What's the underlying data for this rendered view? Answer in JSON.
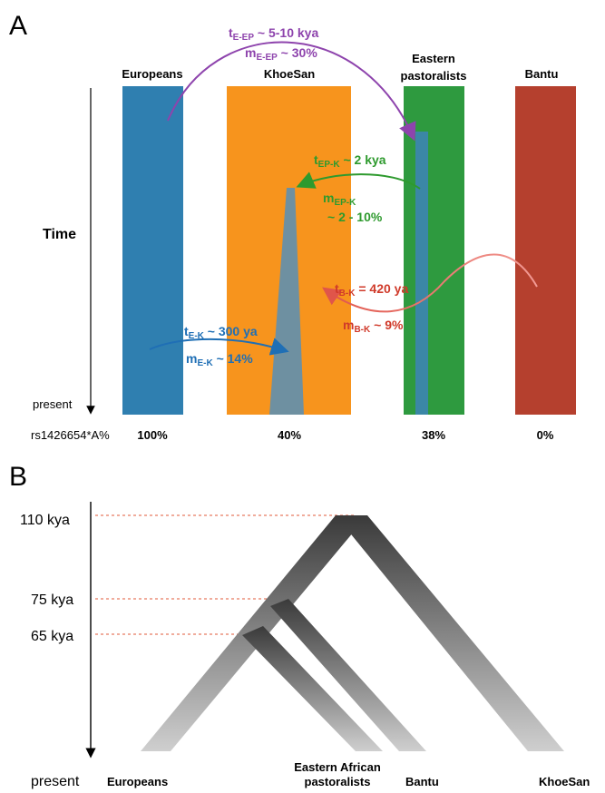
{
  "panel_a": {
    "label": "A",
    "populations": [
      "Europeans",
      "KhoeSan",
      "Eastern",
      "pastoralists",
      "Bantu"
    ],
    "time_label": "Time",
    "present_label": "present",
    "snp_label": "rs1426654*A%",
    "frequencies": [
      "100%",
      "40%",
      "38%",
      "0%"
    ],
    "colors": {
      "europeans": "#2f7fb0",
      "khoesan": "#f7941d",
      "pastoralists": "#2e9a3f",
      "bantu": "#b5402e"
    },
    "events": {
      "e_ep": {
        "t_main": "t",
        "t_sub": "E-EP",
        "t_val": " ~ 5-10 kya",
        "m_main": "m",
        "m_sub": "E-EP",
        "m_val": " ~ 30%",
        "color": "#8e44ad"
      },
      "ep_k": {
        "t_main": "t",
        "t_sub": "EP-K",
        "t_val": " ~ 2 kya",
        "m_main": "m",
        "m_sub": "EP-K",
        "m_val2": "~ 2 - 10%",
        "color": "#2e9a2e"
      },
      "b_k": {
        "t_main": "t",
        "t_sub": "B-K",
        "t_val": " = 420 ya",
        "m_main": "m",
        "m_sub": "B-K",
        "m_val": " ~ 9%",
        "color": "#d03a2a"
      },
      "e_k": {
        "t_main": "t",
        "t_sub": "E-K",
        "t_val": " ~ 300 ya",
        "m_main": "m",
        "m_sub": "E-K",
        "m_val": " ~ 14%",
        "color": "#1f6fb5"
      }
    }
  },
  "panel_b": {
    "label": "B",
    "times": [
      "110 kya",
      "75 kya",
      "65 kya"
    ],
    "present_label": "present",
    "leaves": [
      "Europeans",
      "Eastern African",
      "pastoralists",
      "Bantu",
      "KhoeSan"
    ]
  }
}
